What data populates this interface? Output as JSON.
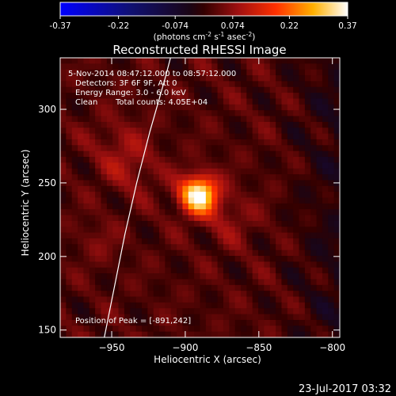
{
  "chart_data": {
    "type": "heatmap",
    "title": "Reconstructed RHESSI Image",
    "xlabel": "Heliocentric X (arcsec)",
    "ylabel": "Heliocentric Y (arcsec)",
    "xlim": [
      -985,
      -795
    ],
    "ylim": [
      145,
      335
    ],
    "xticks": [
      -950,
      -900,
      -850,
      -800
    ],
    "yticks": [
      150,
      200,
      250,
      300
    ],
    "colorbar": {
      "min": -0.37,
      "max": 0.37,
      "ticks": [
        -0.37,
        -0.22,
        -0.074,
        0.074,
        0.22,
        0.37
      ],
      "tick_labels": [
        "-0.37",
        "-0.22",
        "-0.074",
        "0.074",
        "0.22",
        "0.37"
      ],
      "label_main": "(photons cm",
      "label_sup1": "-2",
      "label_mid": " s",
      "label_sup2": "-1",
      "label_mid2": " asec",
      "label_sup3": "-2",
      "label_end": ")"
    },
    "peak": {
      "x": -891,
      "y": 242
    },
    "limb_curve": [
      [
        -955,
        145
      ],
      [
        -948,
        180
      ],
      [
        -941,
        215
      ],
      [
        -933,
        250
      ],
      [
        -924,
        285
      ],
      [
        -914,
        320
      ],
      [
        -910,
        335
      ]
    ],
    "annotations": {
      "time": "5-Nov-2014 08:47:12.000 to 08:57:12.000",
      "detectors": "Detectors: 3F 6F 9F, Att 0",
      "energy": "Energy Range: 3.0 - 6.0 keV",
      "clean": "Clean",
      "counts": "Total counts: 4.05E+04",
      "peak_label": "Position of Peak = [-891,242]"
    }
  },
  "footer": {
    "date": "23-Jul-2017 03:32"
  },
  "colors": {
    "background": "#000000",
    "limb_line": "#ffffff"
  }
}
